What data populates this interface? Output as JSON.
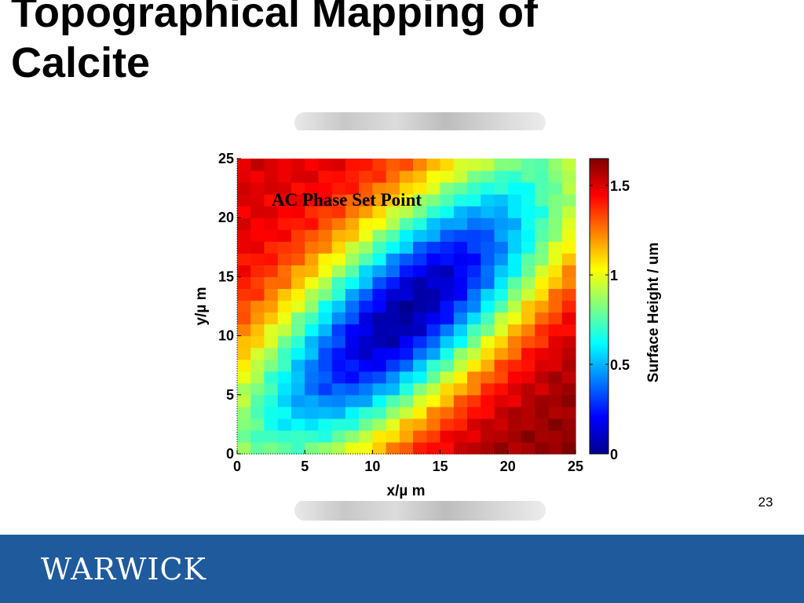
{
  "slide": {
    "title_line1": "Topographical Mapping of",
    "title_line2": "Calcite",
    "page_number": "23",
    "logo_text": "WARWICK"
  },
  "colors": {
    "footer": "#1f5b9c",
    "title": "#000000"
  },
  "chart_data": {
    "type": "heatmap",
    "annotation": "AC Phase Set Point",
    "xlabel": "x/µ m",
    "ylabel": "y/µ m",
    "colorbar_label": "Surface Height / um",
    "xlim": [
      0,
      25
    ],
    "ylim": [
      0,
      25
    ],
    "clim": [
      0,
      1.65
    ],
    "x_ticks": [
      0,
      5,
      10,
      15,
      20,
      25
    ],
    "y_ticks": [
      0,
      5,
      10,
      15,
      20,
      25
    ],
    "colorbar_ticks": [
      0,
      0.5,
      1,
      1.5
    ],
    "colormap": "jet",
    "grid_size": [
      25,
      25
    ],
    "surface_model": {
      "description_of_values": "surface height in um at grid cell (x, y), lowest along the diagonal valley through (12.5, 12)",
      "valley_center": [
        12.5,
        12
      ],
      "valley_direction_slope": 1.1,
      "min_height": 0.05,
      "top_left_height": 1.5,
      "bottom_right_height": 1.62,
      "cross_valley_scale": 7.5,
      "along_valley_scale": 10
    }
  }
}
